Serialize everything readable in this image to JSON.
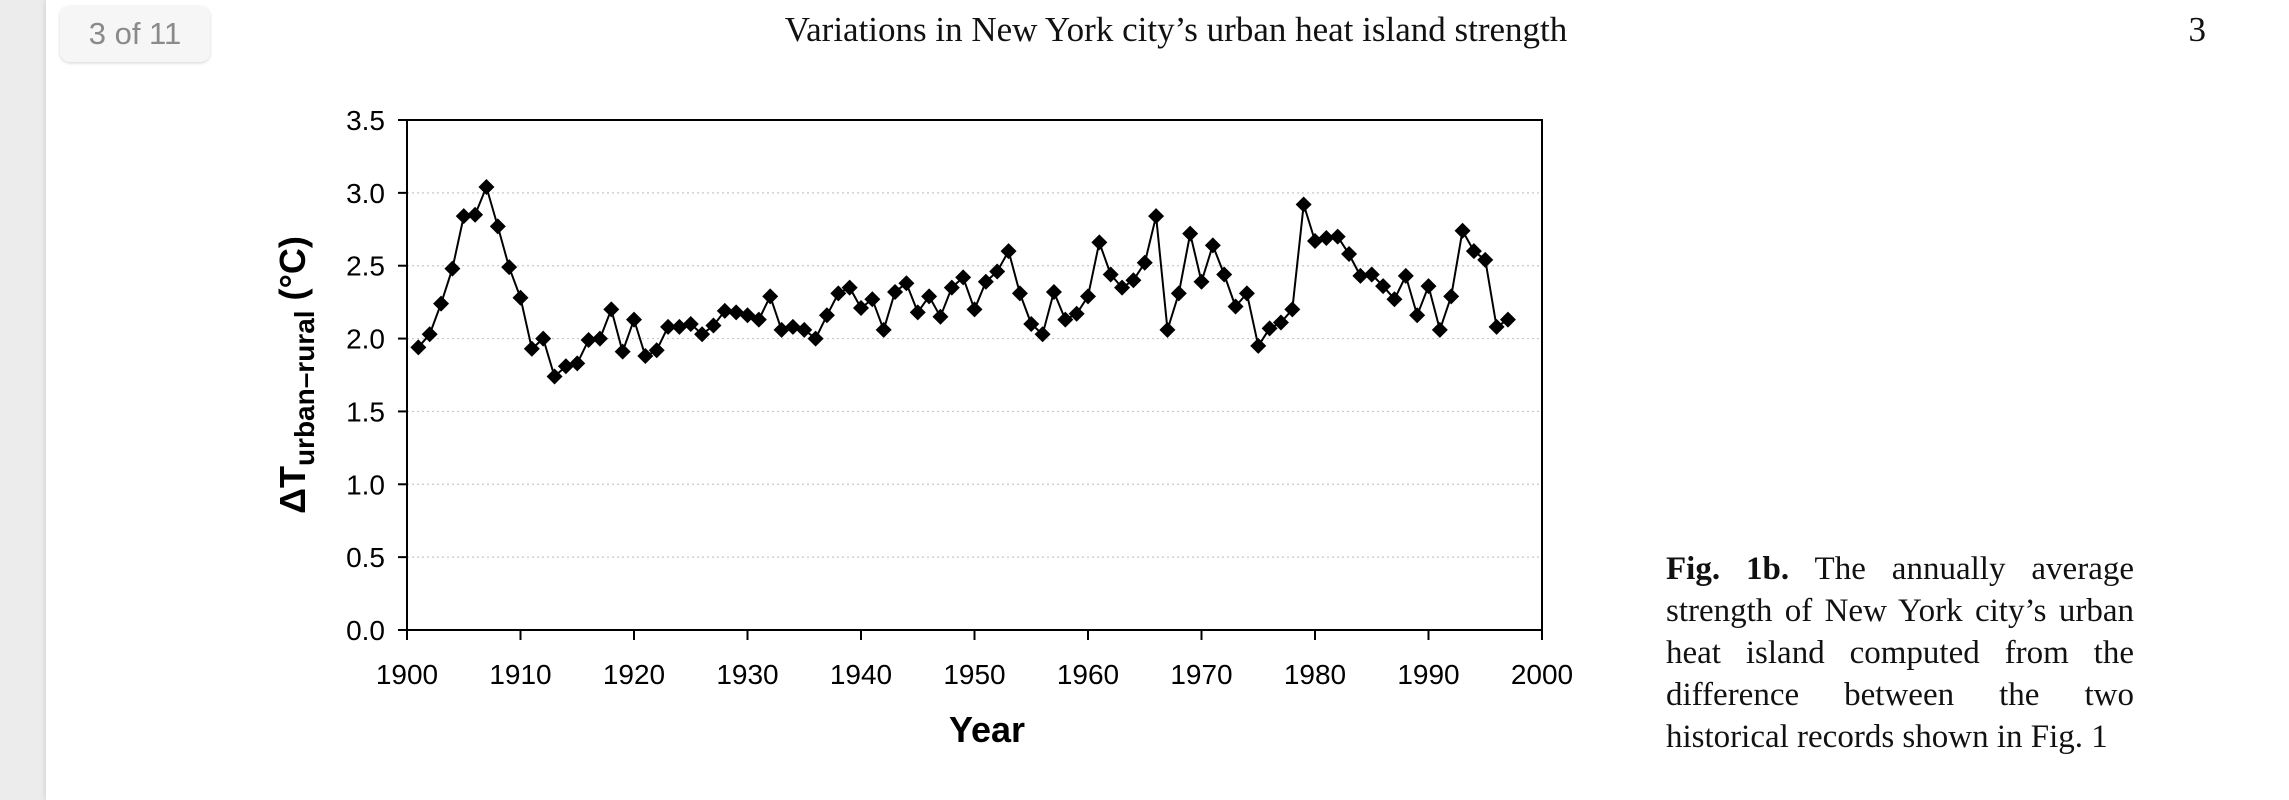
{
  "viewer": {
    "page_counter": "3 of 11"
  },
  "header": {
    "running_title": "Variations in New York city’s urban heat island strength",
    "page_number": "3"
  },
  "figure": {
    "caption_label": "Fig. 1b.",
    "caption_text": " The annually average strength of New York city’s ur­ban heat island computed from the difference between the two historical records shown in Fig. 1"
  },
  "chart_data": {
    "type": "line",
    "marker": "diamond",
    "color": "#000000",
    "title": "",
    "xlabel": "Year",
    "ylabel_main": "ΔT",
    "ylabel_sub": "urban–rural",
    "ylabel_unit": " (°C)",
    "xlim": [
      1900,
      2000
    ],
    "ylim": [
      0.0,
      3.5
    ],
    "xticks": [
      "1900",
      "1910",
      "1920",
      "1930",
      "1940",
      "1950",
      "1960",
      "1970",
      "1980",
      "1990",
      "2000"
    ],
    "yticks": [
      "0.0",
      "0.5",
      "1.0",
      "1.5",
      "2.0",
      "2.5",
      "3.0",
      "3.5"
    ],
    "grid": "horizontal dotted",
    "series": [
      {
        "x": [
          1901,
          1902,
          1903,
          1904,
          1905,
          1906,
          1907,
          1908,
          1909,
          1910,
          1911,
          1912,
          1913,
          1914,
          1915,
          1916,
          1917,
          1918,
          1919,
          1920,
          1921,
          1922,
          1923,
          1924,
          1925,
          1926,
          1927,
          1928,
          1929,
          1930,
          1931,
          1932,
          1933,
          1934,
          1935,
          1936,
          1937,
          1938,
          1939,
          1940,
          1941,
          1942,
          1943,
          1944,
          1945,
          1946,
          1947,
          1948,
          1949,
          1950,
          1951,
          1952,
          1953,
          1954,
          1955,
          1956,
          1957,
          1958,
          1959,
          1960,
          1961,
          1962,
          1963,
          1964,
          1965,
          1966,
          1967,
          1968,
          1969,
          1970,
          1971,
          1972,
          1973,
          1974,
          1975,
          1976,
          1977,
          1978,
          1979,
          1980,
          1981,
          1982,
          1983,
          1984,
          1985,
          1986,
          1987,
          1988,
          1989,
          1990,
          1991,
          1992,
          1993,
          1994,
          1995,
          1996,
          1997
        ],
        "y": [
          1.94,
          2.03,
          2.24,
          2.48,
          2.84,
          2.85,
          3.04,
          2.77,
          2.49,
          2.28,
          1.93,
          2.0,
          1.74,
          1.81,
          1.83,
          1.99,
          2.0,
          2.2,
          1.91,
          2.13,
          1.88,
          1.92,
          2.08,
          2.08,
          2.1,
          2.03,
          2.09,
          2.19,
          2.18,
          2.16,
          2.13,
          2.29,
          2.06,
          2.08,
          2.06,
          2.0,
          2.16,
          2.31,
          2.35,
          2.21,
          2.27,
          2.06,
          2.32,
          2.38,
          2.18,
          2.29,
          2.15,
          2.35,
          2.42,
          2.2,
          2.39,
          2.46,
          2.6,
          2.31,
          2.1,
          2.03,
          2.32,
          2.13,
          2.17,
          2.29,
          2.66,
          2.44,
          2.35,
          2.4,
          2.52,
          2.84,
          2.06,
          2.31,
          2.72,
          2.39,
          2.64,
          2.44,
          2.22,
          2.31,
          1.95,
          2.07,
          2.11,
          2.2,
          2.92,
          2.67,
          2.69,
          2.7,
          2.58,
          2.43,
          2.44,
          2.36,
          2.27,
          2.43,
          2.16,
          2.36,
          2.06,
          2.29,
          2.74,
          2.6,
          2.54,
          2.08,
          2.13
        ]
      }
    ]
  }
}
